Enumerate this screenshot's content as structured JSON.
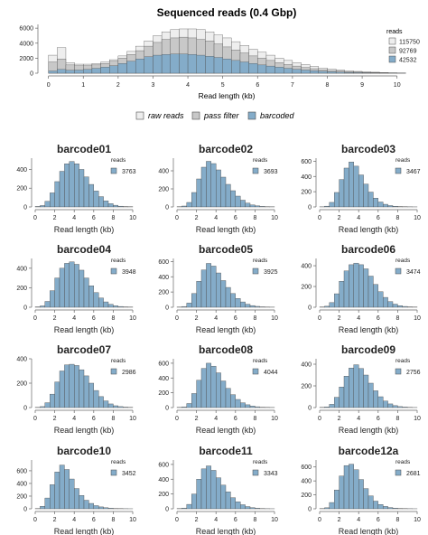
{
  "main": {
    "title": "Sequenced reads (0.4 Gbp)",
    "xlabel": "Read length (kb)",
    "legend_title": "reads",
    "bottom_legend": [
      "raw reads",
      "pass filter",
      "barcoded"
    ]
  },
  "panels_common": {
    "legend_title": "reads",
    "xlabel": "Read length (kb)"
  },
  "colors": {
    "raw": "#eeeeee",
    "pass": "#c8c8c8",
    "barcoded": "#84acc9",
    "bar_stroke": "#4d4d4d",
    "axis": "#666666"
  },
  "chart_data": [
    {
      "type": "area",
      "title": "Sequenced reads (0.4 Gbp)",
      "xlabel": "Read length (kb)",
      "ylabel": "",
      "xlim": [
        -0.25,
        10.5
      ],
      "ylim": [
        0,
        6500
      ],
      "x_ticks": [
        0,
        1,
        2,
        3,
        4,
        5,
        6,
        7,
        8,
        9,
        10
      ],
      "y_ticks": [
        0,
        2000,
        4000,
        6000
      ],
      "bin_width": 0.25,
      "bin_start": 0,
      "stacking": "overlay",
      "legend_position": "top-right",
      "series": [
        {
          "name": "115750",
          "label": "raw reads",
          "color": "#eeeeee",
          "values": [
            2400,
            3400,
            1400,
            1200,
            1200,
            1300,
            1500,
            1800,
            2300,
            2900,
            3600,
            4300,
            5000,
            5500,
            5800,
            5900,
            5900,
            5800,
            5500,
            5100,
            4700,
            4200,
            3700,
            3200,
            2800,
            2400,
            2000,
            1700,
            1400,
            1150,
            900,
            700,
            550,
            420,
            320,
            240,
            180,
            130,
            90,
            60,
            40
          ]
        },
        {
          "name": "92769",
          "label": "pass filter",
          "color": "#c8c8c8",
          "values": [
            1500,
            1900,
            1100,
            1000,
            1000,
            1100,
            1300,
            1600,
            2000,
            2500,
            3000,
            3600,
            4100,
            4500,
            4700,
            4800,
            4700,
            4500,
            4300,
            3900,
            3500,
            3100,
            2700,
            2300,
            2000,
            1700,
            1400,
            1150,
            950,
            750,
            600,
            460,
            350,
            270,
            200,
            150,
            110,
            80,
            55,
            35,
            25
          ]
        },
        {
          "name": "42532",
          "label": "barcoded",
          "color": "#84acc9",
          "values": [
            300,
            500,
            400,
            420,
            500,
            650,
            800,
            1000,
            1300,
            1600,
            1900,
            2200,
            2400,
            2500,
            2550,
            2550,
            2500,
            2400,
            2250,
            2100,
            1900,
            1700,
            1500,
            1300,
            1100,
            950,
            800,
            650,
            520,
            420,
            330,
            250,
            190,
            140,
            100,
            75,
            55,
            40,
            28,
            18,
            12
          ]
        }
      ]
    },
    {
      "type": "bar",
      "title": "barcode01",
      "xlabel": "Read length (kb)",
      "legend_title": "reads",
      "legend": "3763",
      "bin_width": 0.5,
      "bin_start": 0,
      "x_ticks": [
        0,
        2,
        4,
        6,
        8,
        10
      ],
      "y_ticks": [
        0,
        200,
        400
      ],
      "ylim": [
        0,
        520
      ],
      "values": [
        5,
        15,
        60,
        150,
        270,
        380,
        460,
        485,
        460,
        400,
        320,
        240,
        170,
        110,
        65,
        35,
        18,
        8,
        4,
        2
      ]
    },
    {
      "type": "bar",
      "title": "barcode02",
      "xlabel": "Read length (kb)",
      "legend_title": "reads",
      "legend": "3693",
      "bin_width": 0.5,
      "bin_start": 0,
      "x_ticks": [
        0,
        2,
        4,
        6,
        8,
        10
      ],
      "y_ticks": [
        0,
        200,
        400
      ],
      "ylim": [
        0,
        540
      ],
      "values": [
        3,
        10,
        50,
        160,
        310,
        440,
        505,
        480,
        410,
        330,
        250,
        180,
        120,
        75,
        42,
        22,
        12,
        6,
        3,
        2
      ]
    },
    {
      "type": "bar",
      "title": "barcode03",
      "xlabel": "Read length (kb)",
      "legend_title": "reads",
      "legend": "3467",
      "bin_width": 0.5,
      "bin_start": 0,
      "x_ticks": [
        0,
        2,
        4,
        6,
        8,
        10
      ],
      "y_ticks": [
        0,
        200,
        400,
        600
      ],
      "ylim": [
        0,
        640
      ],
      "values": [
        2,
        10,
        60,
        190,
        360,
        510,
        590,
        535,
        420,
        300,
        195,
        115,
        65,
        35,
        18,
        9,
        5,
        3,
        2,
        1
      ]
    },
    {
      "type": "bar",
      "title": "barcode04",
      "xlabel": "Read length (kb)",
      "legend_title": "reads",
      "legend": "3948",
      "bin_width": 0.5,
      "bin_start": 0,
      "x_ticks": [
        0,
        2,
        4,
        6,
        8,
        10
      ],
      "y_ticks": [
        0,
        200,
        400
      ],
      "ylim": [
        0,
        500
      ],
      "values": [
        4,
        14,
        60,
        170,
        300,
        400,
        450,
        465,
        440,
        380,
        300,
        220,
        150,
        95,
        55,
        30,
        15,
        8,
        4,
        2
      ]
    },
    {
      "type": "bar",
      "title": "barcode05",
      "xlabel": "Read length (kb)",
      "legend_title": "reads",
      "legend": "3925",
      "bin_width": 0.5,
      "bin_start": 0,
      "x_ticks": [
        0,
        2,
        4,
        6,
        8,
        10
      ],
      "y_ticks": [
        0,
        200,
        400,
        600
      ],
      "ylim": [
        0,
        640
      ],
      "values": [
        3,
        10,
        55,
        180,
        340,
        490,
        575,
        540,
        450,
        350,
        260,
        180,
        115,
        70,
        40,
        22,
        12,
        6,
        3,
        2
      ]
    },
    {
      "type": "bar",
      "title": "barcode06",
      "xlabel": "Read length (kb)",
      "legend_title": "reads",
      "legend": "3474",
      "bin_width": 0.5,
      "bin_start": 0,
      "x_ticks": [
        0,
        2,
        4,
        6,
        8,
        10
      ],
      "y_ticks": [
        0,
        200,
        400
      ],
      "ylim": [
        0,
        470
      ],
      "values": [
        3,
        10,
        45,
        130,
        250,
        350,
        410,
        425,
        410,
        370,
        300,
        220,
        150,
        95,
        55,
        30,
        15,
        8,
        4,
        2
      ]
    },
    {
      "type": "bar",
      "title": "barcode07",
      "xlabel": "Read length (kb)",
      "legend_title": "reads",
      "legend": "2986",
      "bin_width": 0.5,
      "bin_start": 0,
      "x_ticks": [
        0,
        2,
        4,
        6,
        8,
        10
      ],
      "y_ticks": [
        0,
        200,
        400
      ],
      "ylim": [
        0,
        400
      ],
      "values": [
        2,
        8,
        40,
        110,
        210,
        300,
        350,
        355,
        345,
        310,
        260,
        200,
        140,
        90,
        55,
        30,
        15,
        8,
        4,
        2
      ]
    },
    {
      "type": "bar",
      "title": "barcode08",
      "xlabel": "Read length (kb)",
      "legend_title": "reads",
      "legend": "4044",
      "bin_width": 0.5,
      "bin_start": 0,
      "x_ticks": [
        0,
        2,
        4,
        6,
        8,
        10
      ],
      "y_ticks": [
        0,
        200,
        400,
        600
      ],
      "ylim": [
        0,
        660
      ],
      "values": [
        3,
        10,
        55,
        190,
        370,
        530,
        600,
        560,
        470,
        360,
        260,
        175,
        110,
        65,
        38,
        20,
        11,
        5,
        3,
        2
      ]
    },
    {
      "type": "bar",
      "title": "barcode09",
      "xlabel": "Read length (kb)",
      "legend_title": "reads",
      "legend": "2756",
      "bin_width": 0.5,
      "bin_start": 0,
      "x_ticks": [
        0,
        2,
        4,
        6,
        8,
        10
      ],
      "y_ticks": [
        0,
        200,
        400
      ],
      "ylim": [
        0,
        450
      ],
      "values": [
        2,
        6,
        30,
        95,
        190,
        290,
        365,
        395,
        360,
        300,
        225,
        155,
        100,
        60,
        34,
        18,
        9,
        5,
        2,
        1
      ]
    },
    {
      "type": "bar",
      "title": "barcode10",
      "xlabel": "Read length (kb)",
      "legend_title": "reads",
      "legend": "3452",
      "bin_width": 0.5,
      "bin_start": 0,
      "x_ticks": [
        0,
        2,
        4,
        6,
        8,
        10
      ],
      "y_ticks": [
        0,
        200,
        400,
        600
      ],
      "ylim": [
        0,
        770
      ],
      "values": [
        4,
        40,
        170,
        380,
        580,
        690,
        620,
        470,
        320,
        210,
        135,
        85,
        50,
        30,
        17,
        9,
        5,
        3,
        2,
        1
      ]
    },
    {
      "type": "bar",
      "title": "barcode11",
      "xlabel": "Read length (kb)",
      "legend_title": "reads",
      "legend": "3343",
      "bin_width": 0.5,
      "bin_start": 0,
      "x_ticks": [
        0,
        2,
        4,
        6,
        8,
        10
      ],
      "y_ticks": [
        0,
        200,
        400,
        600
      ],
      "ylim": [
        0,
        660
      ],
      "values": [
        3,
        10,
        60,
        200,
        400,
        540,
        580,
        520,
        420,
        320,
        230,
        150,
        95,
        55,
        30,
        16,
        8,
        4,
        2,
        1
      ]
    },
    {
      "type": "bar",
      "title": "barcode12a",
      "xlabel": "Read length (kb)",
      "legend_title": "reads",
      "legend": "2681",
      "bin_width": 0.5,
      "bin_start": 0,
      "x_ticks": [
        0,
        2,
        4,
        6,
        8,
        10
      ],
      "y_ticks": [
        0,
        200,
        400,
        600
      ],
      "ylim": [
        0,
        700
      ],
      "values": [
        3,
        15,
        90,
        270,
        470,
        620,
        640,
        560,
        420,
        290,
        185,
        110,
        62,
        34,
        18,
        9,
        5,
        3,
        2,
        1
      ]
    }
  ]
}
